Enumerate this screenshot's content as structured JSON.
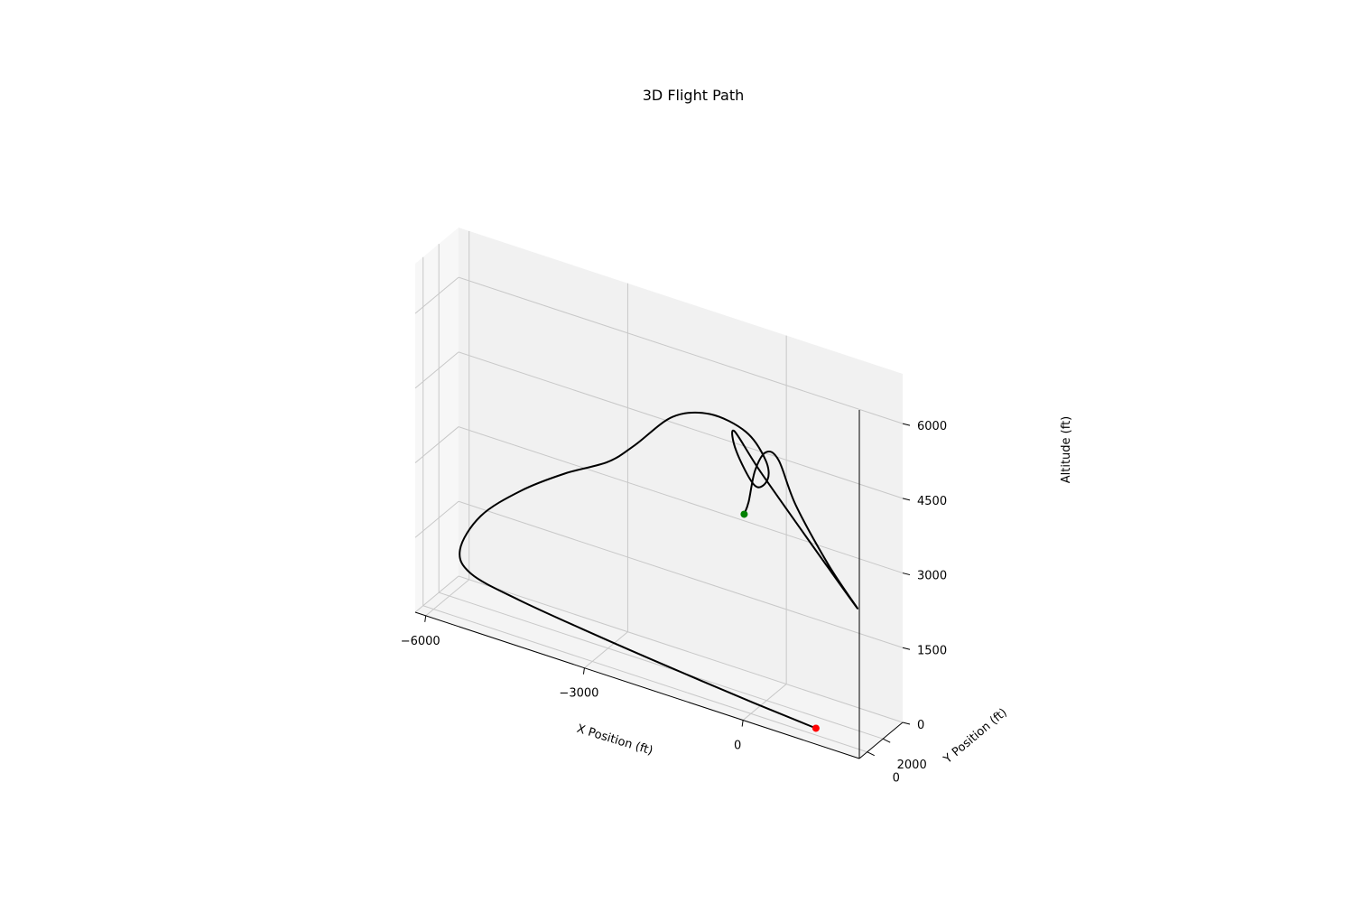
{
  "chart_data": {
    "type": "line",
    "projection": "3d",
    "title": "3D Flight Path",
    "xlabel": "X Position (ft)",
    "ylabel": "Y Position (ft)",
    "zlabel": "Altitude (ft)",
    "xlim": [
      -6200,
      2200
    ],
    "ylim": [
      -1000,
      4500
    ],
    "zlim": [
      0,
      7000
    ],
    "x_ticks": [
      -6000,
      -3000,
      0
    ],
    "x_tick_labels": [
      "−6000",
      "−3000",
      "0"
    ],
    "y_ticks": [
      0,
      2000
    ],
    "y_tick_labels": [
      "0",
      "2000"
    ],
    "z_ticks": [
      0,
      1500,
      3000,
      4500,
      6000
    ],
    "z_tick_labels": [
      "0",
      "1500",
      "3000",
      "4500",
      "6000"
    ],
    "grid": true,
    "series": [
      {
        "color": "#000000",
        "x": [
          1200,
          0,
          -1500,
          -3000,
          -4500,
          -5500,
          -5800,
          -5500,
          -4800,
          -4000,
          -3200,
          -2700,
          -2000,
          -1300,
          -600,
          -200,
          -100,
          -250,
          -500,
          -450,
          100,
          1200,
          2000,
          1400,
          700,
          300,
          0,
          -250,
          -400,
          -500
        ],
        "y": [
          200,
          200,
          200,
          300,
          800,
          1400,
          2000,
          2600,
          3000,
          3200,
          3300,
          3400,
          3500,
          3500,
          3400,
          3200,
          2800,
          2200,
          1500,
          900,
          600,
          400,
          100,
          500,
          1000,
          1500,
          1900,
          2200,
          2400,
          2500
        ],
        "z": [
          100,
          200,
          350,
          500,
          600,
          700,
          1000,
          1700,
          2400,
          3000,
          3500,
          4000,
          4800,
          5100,
          5000,
          4600,
          4300,
          4200,
          4900,
          5400,
          4800,
          3600,
          2800,
          3400,
          4300,
          5000,
          5000,
          4500,
          3800,
          3500
        ]
      }
    ],
    "markers": [
      {
        "color": "#ff0000",
        "x": 1200,
        "y": 200,
        "z": 100
      },
      {
        "color": "#008000",
        "x": -500,
        "y": 2500,
        "z": 3500
      }
    ]
  }
}
